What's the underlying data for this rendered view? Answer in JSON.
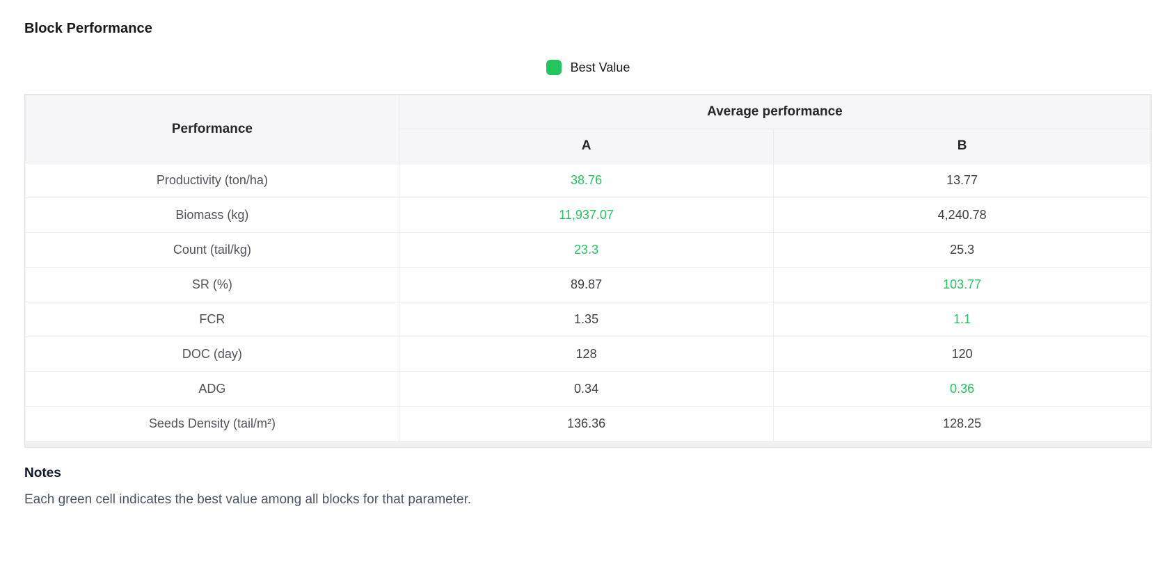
{
  "title": "Block Performance",
  "legend": {
    "label": "Best Value",
    "color": "#22c55e"
  },
  "table": {
    "corner_header": "Performance",
    "group_header": "Average performance",
    "columns": [
      "A",
      "B"
    ],
    "rows": [
      {
        "label": "Productivity (ton/ha)",
        "a": {
          "value": "38.76",
          "state": "best"
        },
        "b": {
          "value": "13.77",
          "state": "normal"
        }
      },
      {
        "label": "Biomass (kg)",
        "a": {
          "value": "11,937.07",
          "state": "best"
        },
        "b": {
          "value": "4,240.78",
          "state": "normal"
        }
      },
      {
        "label": "Count (tail/kg)",
        "a": {
          "value": "23.3",
          "state": "best"
        },
        "b": {
          "value": "25.3",
          "state": "normal"
        }
      },
      {
        "label": "SR (%)",
        "a": {
          "value": "89.87",
          "state": "normal"
        },
        "b": {
          "value": "103.77",
          "state": "best"
        }
      },
      {
        "label": "FCR",
        "a": {
          "value": "1.35",
          "state": "normal"
        },
        "b": {
          "value": "1.1",
          "state": "best"
        }
      },
      {
        "label": "DOC (day)",
        "a": {
          "value": "128",
          "state": "normal"
        },
        "b": {
          "value": "120",
          "state": "normal"
        }
      },
      {
        "label": "ADG",
        "a": {
          "value": "0.34",
          "state": "normal"
        },
        "b": {
          "value": "0.36",
          "state": "best"
        }
      },
      {
        "label": "Seeds Density (tail/m²)",
        "a": {
          "value": "136.36",
          "state": "normal"
        },
        "b": {
          "value": "128.25",
          "state": "normal"
        }
      }
    ]
  },
  "notes": {
    "heading": "Notes",
    "body": "Each green cell indicates the best value among all blocks for that parameter."
  },
  "chart_data": {
    "type": "table",
    "title": "Block Performance",
    "legend": [
      {
        "label": "Best Value",
        "color": "#22c55e"
      }
    ],
    "row_header": "Performance",
    "column_group": "Average performance",
    "columns": [
      "A",
      "B"
    ],
    "categories": [
      "Productivity (ton/ha)",
      "Biomass (kg)",
      "Count (tail/kg)",
      "SR (%)",
      "FCR",
      "DOC (day)",
      "ADG",
      "Seeds Density (tail/m²)"
    ],
    "series": [
      {
        "name": "A",
        "values": [
          38.76,
          11937.07,
          23.3,
          89.87,
          1.35,
          128,
          0.34,
          136.36
        ]
      },
      {
        "name": "B",
        "values": [
          13.77,
          4240.78,
          25.3,
          103.77,
          1.1,
          120,
          0.36,
          128.25
        ]
      }
    ],
    "best_value_cells": [
      [
        "Productivity (ton/ha)",
        "A"
      ],
      [
        "Biomass (kg)",
        "A"
      ],
      [
        "Count (tail/kg)",
        "A"
      ],
      [
        "SR (%)",
        "B"
      ],
      [
        "FCR",
        "B"
      ],
      [
        "ADG",
        "B"
      ]
    ]
  }
}
